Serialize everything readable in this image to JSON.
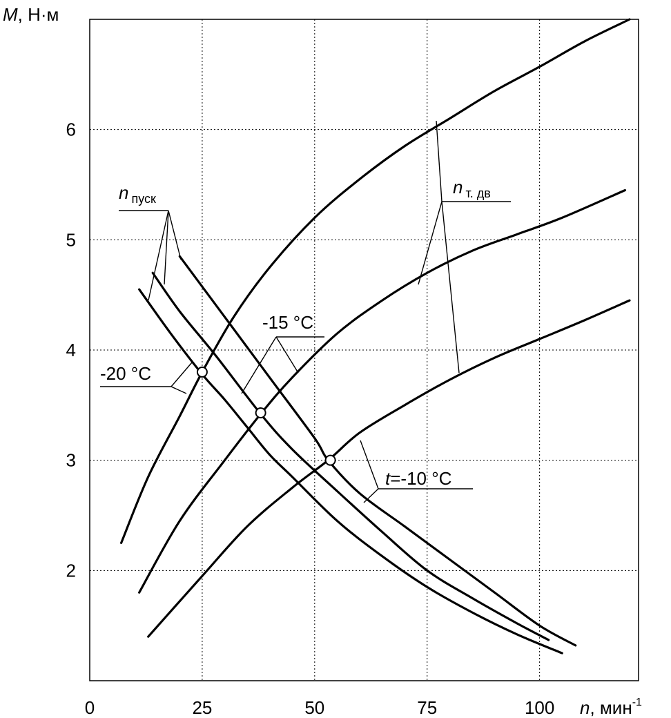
{
  "chart_data": {
    "type": "line",
    "xlabel": {
      "var": "n",
      "unit": ", мин",
      "exp": "-1"
    },
    "ylabel": {
      "var": "M",
      "unit": ", Н·м"
    },
    "xlim": [
      0,
      122
    ],
    "ylim": [
      1,
      7
    ],
    "xticks": [
      "0",
      "25",
      "50",
      "75",
      "100"
    ],
    "yticks": [
      "2",
      "3",
      "4",
      "5",
      "6"
    ],
    "grid": true,
    "series": [
      {
        "name": "-20 °C",
        "kind": "engine-torque",
        "x": [
          7,
          13,
          20,
          25,
          32,
          40,
          50,
          60,
          70,
          80,
          90,
          100,
          110,
          120
        ],
        "y": [
          2.25,
          2.85,
          3.4,
          3.8,
          4.3,
          4.75,
          5.2,
          5.55,
          5.85,
          6.1,
          6.35,
          6.57,
          6.8,
          7.0
        ]
      },
      {
        "name": "-15 °C",
        "kind": "engine-torque",
        "x": [
          11,
          20,
          30,
          38,
          45,
          55,
          65,
          75,
          85,
          95,
          105,
          119
        ],
        "y": [
          1.8,
          2.45,
          3.0,
          3.42,
          3.75,
          4.15,
          4.45,
          4.7,
          4.9,
          5.05,
          5.2,
          5.45
        ]
      },
      {
        "name": "t=-10 °C",
        "kind": "engine-torque",
        "x": [
          13,
          25,
          35,
          45,
          53,
          60,
          70,
          80,
          90,
          100,
          110,
          120
        ],
        "y": [
          1.4,
          1.95,
          2.4,
          2.75,
          3.0,
          3.25,
          3.5,
          3.73,
          3.93,
          4.1,
          4.27,
          4.45
        ]
      },
      {
        "name": "n пуск (-20 °C)",
        "kind": "resistance",
        "x": [
          11,
          18,
          25,
          30,
          35,
          40,
          45,
          55,
          65,
          75,
          85,
          95,
          105
        ],
        "y": [
          4.55,
          4.15,
          3.78,
          3.55,
          3.3,
          3.05,
          2.85,
          2.45,
          2.13,
          1.85,
          1.62,
          1.42,
          1.25
        ]
      },
      {
        "name": "n пуск (-15 °C)",
        "kind": "resistance",
        "x": [
          14,
          20,
          28,
          38,
          45,
          55,
          65,
          75,
          85,
          95,
          102
        ],
        "y": [
          4.7,
          4.35,
          3.95,
          3.42,
          3.1,
          2.72,
          2.35,
          2.0,
          1.75,
          1.52,
          1.37
        ]
      },
      {
        "name": "n пуск (-10 °C)",
        "kind": "resistance",
        "x": [
          20,
          30,
          40,
          50,
          53,
          60,
          70,
          80,
          90,
          100,
          108
        ],
        "y": [
          4.85,
          4.3,
          3.75,
          3.2,
          3.0,
          2.7,
          2.4,
          2.1,
          1.8,
          1.5,
          1.32
        ]
      }
    ],
    "intersections": [
      {
        "x": 25,
        "y": 3.8
      },
      {
        "x": 38,
        "y": 3.43
      },
      {
        "x": 53.5,
        "y": 3.0
      }
    ],
    "annotations": {
      "n_start": {
        "var": "n",
        "sub": "пуск"
      },
      "n_engine": {
        "var": "n",
        "sub": "т. дв"
      },
      "t20": {
        "text": "-20 °C"
      },
      "t15": {
        "text": "-15 °C"
      },
      "t10": {
        "prefix": "t",
        "text": "=-10 °C"
      }
    }
  }
}
